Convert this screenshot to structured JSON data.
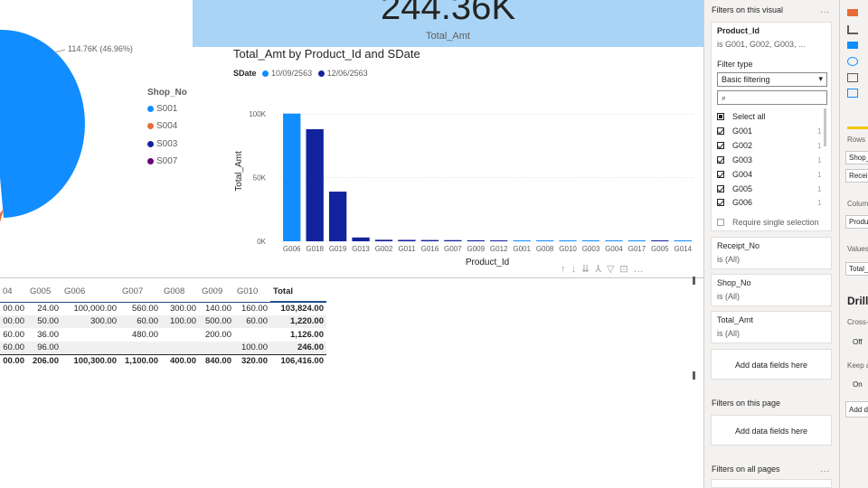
{
  "card": {
    "value": "244.36K",
    "label": "Total_Amt"
  },
  "pie": {
    "slice_label": "114.76K (46.96%)",
    "legend_title": "Shop_No",
    "legend": [
      {
        "label": "S001",
        "color": "#118dff"
      },
      {
        "label": "S004",
        "color": "#e66c37"
      },
      {
        "label": "S003",
        "color": "#12239e"
      },
      {
        "label": "S007",
        "color": "#6b007b"
      }
    ]
  },
  "chart_data": {
    "type": "bar",
    "title": "Total_Amt by Product_Id and SDate",
    "legend_title": "SDate",
    "series": [
      {
        "name": "10/09/2563",
        "color": "#118dff"
      },
      {
        "name": "12/06/2563",
        "color": "#12239e"
      }
    ],
    "categories": [
      "G006",
      "G018",
      "G019",
      "G013",
      "G002",
      "G011",
      "G016",
      "G007",
      "G009",
      "G012",
      "G001",
      "G008",
      "G010",
      "G003",
      "G004",
      "G017",
      "G005",
      "G014"
    ],
    "values": [
      100300,
      88000,
      39000,
      3000,
      1200,
      1100,
      1000,
      900,
      800,
      700,
      600,
      500,
      400,
      400,
      300,
      300,
      250,
      200
    ],
    "bar_series": [
      0,
      1,
      1,
      1,
      1,
      1,
      1,
      1,
      1,
      1,
      0,
      0,
      0,
      0,
      0,
      0,
      1,
      0
    ],
    "xlabel": "Product_Id",
    "ylabel": "Total_Amt",
    "yticks": [
      "0K",
      "50K",
      "100K"
    ],
    "ylim": [
      0,
      110000
    ]
  },
  "matrix": {
    "columns": [
      "04",
      "G005",
      "G006",
      "G007",
      "G008",
      "G009",
      "G010",
      "Total"
    ],
    "rows": [
      [
        "00.00",
        "24.00",
        "100,000.00",
        "560.00",
        "300.00",
        "140.00",
        "160.00",
        "103,824.00"
      ],
      [
        "00.00",
        "50.00",
        "300.00",
        "60.00",
        "100.00",
        "500.00",
        "60.00",
        "1,220.00"
      ],
      [
        "60.00",
        "36.00",
        "",
        "480.00",
        "",
        "200.00",
        "",
        "1,126.00"
      ],
      [
        "60.00",
        "96.00",
        "",
        "",
        "",
        "",
        "100.00",
        "246.00"
      ],
      [
        "00.00",
        "206.00",
        "100,300.00",
        "1,100.00",
        "400.00",
        "840.00",
        "320.00",
        "106,416.00"
      ]
    ]
  },
  "filters": {
    "visual_heading": "Filters on this visual",
    "more": "...",
    "product_card": {
      "title": "Product_Id",
      "summary": "is G001, G002, G003, ...",
      "filter_type_label": "Filter type",
      "filter_type_value": "Basic filtering",
      "search_placeholder": "",
      "items": [
        {
          "label": "Select all",
          "state": "part",
          "count": ""
        },
        {
          "label": "G001",
          "state": "on",
          "count": "1"
        },
        {
          "label": "G002",
          "state": "on",
          "count": "1"
        },
        {
          "label": "G003",
          "state": "on",
          "count": "1"
        },
        {
          "label": "G004",
          "state": "on",
          "count": "1"
        },
        {
          "label": "G005",
          "state": "on",
          "count": "1"
        },
        {
          "label": "G006",
          "state": "on",
          "count": "1"
        }
      ],
      "single_select": "Require single selection"
    },
    "cards": [
      {
        "title": "Receipt_No",
        "summary": "is (All)"
      },
      {
        "title": "Shop_No",
        "summary": "is (All)"
      },
      {
        "title": "Total_Amt",
        "summary": "is (All)"
      }
    ],
    "add_fields": "Add data fields here",
    "page_heading": "Filters on this page",
    "all_heading": "Filters on all pages"
  },
  "viz_pane": {
    "rows_label": "Rows",
    "fields": [
      "Shop_No",
      "Receipt_No",
      "Product_Id",
      "Total_Amt"
    ],
    "columns_label": "Columns",
    "values_label": "Values",
    "drill_label": "Drill through",
    "cross_report": "Cross-report",
    "off": "Off",
    "keep_all": "Keep all filters",
    "on": "On",
    "add_drill": "Add drill-through fields here"
  }
}
